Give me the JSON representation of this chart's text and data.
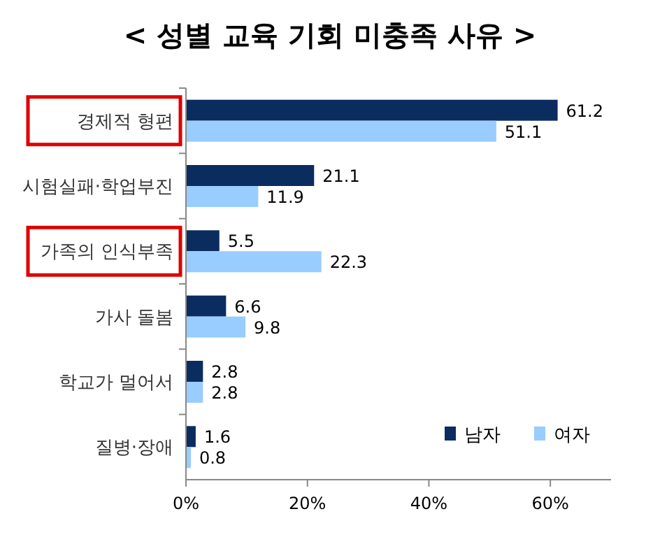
{
  "chart_data": {
    "type": "bar",
    "orientation": "horizontal",
    "title": "< 성별 교육 기회 미충족 사유 >",
    "categories": [
      "경제적 형편",
      "시험실패·학업부진",
      "가족의 인식부족",
      "가사 돌봄",
      "학교가 멀어서",
      "질병·장애"
    ],
    "series": [
      {
        "name": "남자",
        "color": "#0b2c5f",
        "values": [
          61.2,
          21.1,
          5.5,
          6.6,
          2.8,
          1.6
        ]
      },
      {
        "name": "여자",
        "color": "#99ccff",
        "values": [
          51.1,
          11.9,
          22.3,
          9.8,
          2.8,
          0.8
        ]
      }
    ],
    "xlim": [
      0,
      70
    ],
    "xticks": [
      {
        "value": 0,
        "label": "0%"
      },
      {
        "value": 20,
        "label": "20%"
      },
      {
        "value": 40,
        "label": "40%"
      },
      {
        "value": 60,
        "label": "60%"
      }
    ],
    "data_labels": true,
    "legend": "bottom right",
    "grid": false
  }
}
